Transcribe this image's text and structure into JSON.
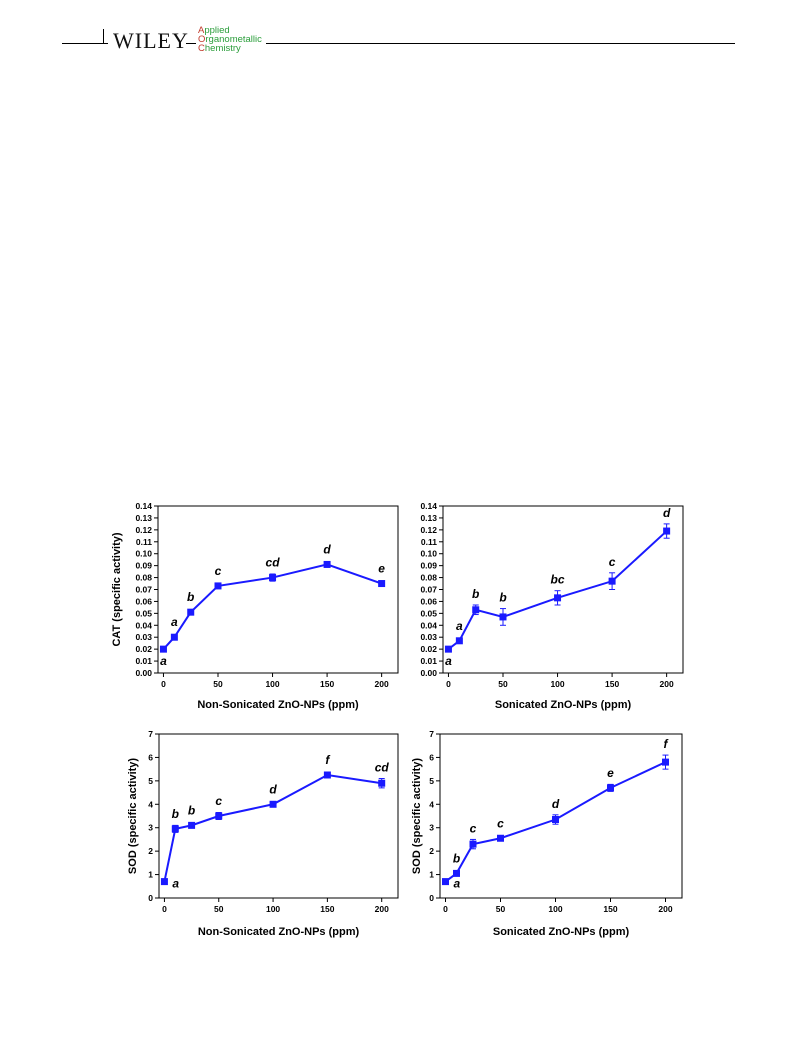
{
  "header": {
    "publisher": "WILEY",
    "journal_lines": [
      "Applied",
      "Organometallic",
      "Chemistry"
    ],
    "colors": {
      "journal_text": "#2a9d3a",
      "journal_initials": "#c0392b"
    }
  },
  "style": {
    "series_color": "#1a1aff",
    "axis_color": "#000000"
  },
  "chart_data": [
    {
      "type": "line",
      "xlabel": "Non-Sonicated ZnO-NPs (ppm)",
      "ylabel": "CAT (specific activity)",
      "xlim": [
        -5,
        215
      ],
      "ylim": [
        0.0,
        0.14
      ],
      "xticks": [
        0,
        50,
        100,
        150,
        200
      ],
      "yticks": [
        0.0,
        0.01,
        0.02,
        0.03,
        0.04,
        0.05,
        0.06,
        0.07,
        0.08,
        0.09,
        0.1,
        0.11,
        0.12,
        0.13,
        0.14
      ],
      "ytick_decimals": 2,
      "x": [
        0,
        10,
        25,
        50,
        100,
        150,
        200
      ],
      "y": [
        0.02,
        0.03,
        0.051,
        0.073,
        0.08,
        0.091,
        0.075
      ],
      "err": [
        0.001,
        0.001,
        0.002,
        0.001,
        0.003,
        0.001,
        0.001
      ],
      "letters": [
        "a",
        "a",
        "b",
        "c",
        "cd",
        "d",
        "e"
      ],
      "letter_pos": [
        "below",
        "above",
        "above",
        "above",
        "above",
        "above",
        "above"
      ],
      "grid": false,
      "legend": "none"
    },
    {
      "type": "line",
      "xlabel": "Sonicated ZnO-NPs (ppm)",
      "ylabel": "",
      "xlim": [
        -5,
        215
      ],
      "ylim": [
        0.0,
        0.14
      ],
      "xticks": [
        0,
        50,
        100,
        150,
        200
      ],
      "yticks": [
        0.0,
        0.01,
        0.02,
        0.03,
        0.04,
        0.05,
        0.06,
        0.07,
        0.08,
        0.09,
        0.1,
        0.11,
        0.12,
        0.13,
        0.14
      ],
      "ytick_decimals": 2,
      "x": [
        0,
        10,
        25,
        50,
        100,
        150,
        200
      ],
      "y": [
        0.02,
        0.027,
        0.053,
        0.047,
        0.063,
        0.077,
        0.119
      ],
      "err": [
        0.001,
        0.002,
        0.004,
        0.007,
        0.006,
        0.007,
        0.006
      ],
      "letters": [
        "a",
        "a",
        "b",
        "b",
        "bc",
        "c",
        "d"
      ],
      "letter_pos": [
        "below",
        "above",
        "above",
        "above",
        "above",
        "above",
        "above"
      ],
      "grid": false,
      "legend": "none"
    },
    {
      "type": "line",
      "xlabel": "Non-Sonicated ZnO-NPs (ppm)",
      "ylabel": "SOD (specific activity)",
      "xlim": [
        -5,
        215
      ],
      "ylim": [
        0,
        7
      ],
      "xticks": [
        0,
        50,
        100,
        150,
        200
      ],
      "yticks": [
        0,
        1,
        2,
        3,
        4,
        5,
        6,
        7
      ],
      "ytick_decimals": 0,
      "x": [
        0,
        10,
        25,
        50,
        100,
        150,
        200
      ],
      "y": [
        0.7,
        2.95,
        3.1,
        3.5,
        4.0,
        5.25,
        4.9
      ],
      "err": [
        0.05,
        0.15,
        0.1,
        0.15,
        0.08,
        0.1,
        0.2
      ],
      "letters": [
        "a",
        "b",
        "b",
        "c",
        "d",
        "f",
        "cd"
      ],
      "letter_pos": [
        "right-below",
        "above",
        "above",
        "above",
        "above",
        "above",
        "above"
      ],
      "grid": false,
      "legend": "none"
    },
    {
      "type": "line",
      "xlabel": "Sonicated ZnO-NPs (ppm)",
      "ylabel": "SOD (specific activity)",
      "xlim": [
        -5,
        215
      ],
      "ylim": [
        0,
        7
      ],
      "xticks": [
        0,
        50,
        100,
        150,
        200
      ],
      "yticks": [
        0,
        1,
        2,
        3,
        4,
        5,
        6,
        7
      ],
      "ytick_decimals": 0,
      "x": [
        0,
        10,
        25,
        50,
        100,
        150,
        200
      ],
      "y": [
        0.7,
        1.05,
        2.3,
        2.55,
        3.35,
        4.7,
        5.8
      ],
      "err": [
        0.05,
        0.08,
        0.2,
        0.08,
        0.2,
        0.15,
        0.3
      ],
      "letters": [
        "a",
        "b",
        "c",
        "c",
        "d",
        "e",
        "f"
      ],
      "letter_pos": [
        "right-below",
        "above",
        "above",
        "above",
        "above",
        "above",
        "above"
      ],
      "grid": false,
      "legend": "none"
    }
  ]
}
